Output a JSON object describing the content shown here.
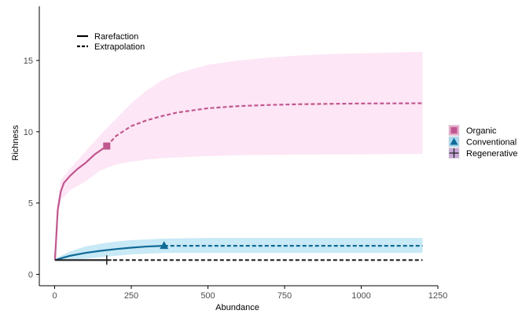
{
  "chart_data": {
    "type": "line",
    "title": "",
    "xlabel": "Abundance",
    "ylabel": "Richness",
    "xlim": [
      -50,
      1250
    ],
    "ylim": [
      -0.8,
      18.8
    ],
    "xticks": [
      "0",
      "250",
      "500",
      "750",
      "1000",
      "1250"
    ],
    "yticks": [
      "0",
      "5",
      "10",
      "15"
    ],
    "grid": false,
    "linetype_legend": {
      "placement": "top-left",
      "items": [
        {
          "label": "Rarefaction",
          "style": "solid"
        },
        {
          "label": "Extrapolation",
          "style": "dashed"
        }
      ]
    },
    "legend": {
      "placement": "right",
      "items": [
        {
          "label": "Organic",
          "color": "#c0578f",
          "fill": "#e7a8cc",
          "shape": "square"
        },
        {
          "label": "Conventional",
          "color": "#0f6a96",
          "fill": "#a8d8ee",
          "shape": "triangle"
        },
        {
          "label": "Regenerative",
          "color": "#222222",
          "fill": "#c9a9d9",
          "shape": "cross"
        }
      ]
    },
    "series": [
      {
        "name": "Organic",
        "color": "#c0578f",
        "band_color": "#fde6f5",
        "observed": {
          "x": 170,
          "y": 9
        },
        "rarefaction": [
          [
            1,
            1
          ],
          [
            5,
            2.5
          ],
          [
            10,
            4.5
          ],
          [
            20,
            5.8
          ],
          [
            30,
            6.4
          ],
          [
            50,
            6.9
          ],
          [
            75,
            7.4
          ],
          [
            100,
            7.8
          ],
          [
            130,
            8.4
          ],
          [
            170,
            9.0
          ]
        ],
        "extrapolation": [
          [
            170,
            9.0
          ],
          [
            200,
            9.7
          ],
          [
            250,
            10.4
          ],
          [
            300,
            10.8
          ],
          [
            350,
            11.1
          ],
          [
            400,
            11.35
          ],
          [
            500,
            11.65
          ],
          [
            600,
            11.8
          ],
          [
            700,
            11.88
          ],
          [
            800,
            11.93
          ],
          [
            900,
            11.96
          ],
          [
            1000,
            11.98
          ],
          [
            1100,
            11.99
          ],
          [
            1200,
            12.0
          ]
        ],
        "band_upper": [
          [
            1,
            1
          ],
          [
            10,
            5
          ],
          [
            20,
            6.6
          ],
          [
            50,
            7.4
          ],
          [
            100,
            8.6
          ],
          [
            150,
            9.8
          ],
          [
            200,
            10.9
          ],
          [
            250,
            12.0
          ],
          [
            300,
            12.9
          ],
          [
            350,
            13.6
          ],
          [
            400,
            14.1
          ],
          [
            500,
            14.7
          ],
          [
            600,
            15.0
          ],
          [
            700,
            15.2
          ],
          [
            800,
            15.35
          ],
          [
            900,
            15.45
          ],
          [
            1000,
            15.5
          ],
          [
            1100,
            15.55
          ],
          [
            1200,
            15.6
          ]
        ],
        "band_lower": [
          [
            1,
            1
          ],
          [
            10,
            4
          ],
          [
            20,
            5.2
          ],
          [
            50,
            5.9
          ],
          [
            100,
            6.5
          ],
          [
            150,
            7.3
          ],
          [
            200,
            7.7
          ],
          [
            250,
            7.9
          ],
          [
            300,
            8.05
          ],
          [
            350,
            8.15
          ],
          [
            400,
            8.2
          ],
          [
            500,
            8.3
          ],
          [
            600,
            8.35
          ],
          [
            700,
            8.38
          ],
          [
            800,
            8.4
          ],
          [
            1000,
            8.42
          ],
          [
            1200,
            8.45
          ]
        ]
      },
      {
        "name": "Conventional",
        "color": "#0f6a96",
        "band_color": "#c8e9f6",
        "observed": {
          "x": 357,
          "y": 2
        },
        "rarefaction": [
          [
            1,
            1
          ],
          [
            25,
            1.15
          ],
          [
            50,
            1.3
          ],
          [
            100,
            1.5
          ],
          [
            150,
            1.65
          ],
          [
            200,
            1.77
          ],
          [
            250,
            1.87
          ],
          [
            300,
            1.95
          ],
          [
            357,
            2.0
          ]
        ],
        "extrapolation": [
          [
            357,
            2.0
          ],
          [
            500,
            2.0
          ],
          [
            750,
            2.0
          ],
          [
            1000,
            2.0
          ],
          [
            1200,
            2.0
          ]
        ],
        "band_upper": [
          [
            1,
            1
          ],
          [
            25,
            1.35
          ],
          [
            50,
            1.6
          ],
          [
            100,
            1.95
          ],
          [
            150,
            2.15
          ],
          [
            200,
            2.3
          ],
          [
            250,
            2.4
          ],
          [
            300,
            2.45
          ],
          [
            357,
            2.5
          ],
          [
            500,
            2.55
          ],
          [
            750,
            2.55
          ],
          [
            1000,
            2.55
          ],
          [
            1200,
            2.55
          ]
        ],
        "band_lower": [
          [
            1,
            1
          ],
          [
            50,
            1.0
          ],
          [
            100,
            1.1
          ],
          [
            150,
            1.2
          ],
          [
            200,
            1.3
          ],
          [
            250,
            1.4
          ],
          [
            300,
            1.45
          ],
          [
            357,
            1.5
          ],
          [
            500,
            1.5
          ],
          [
            750,
            1.5
          ],
          [
            1000,
            1.5
          ],
          [
            1200,
            1.5
          ]
        ]
      },
      {
        "name": "Regenerative",
        "color": "#222222",
        "band_color": "#e6d8f0",
        "observed": {
          "x": 170,
          "y": 1
        },
        "rarefaction": [
          [
            1,
            1
          ],
          [
            170,
            1
          ]
        ],
        "extrapolation": [
          [
            170,
            1
          ],
          [
            500,
            1
          ],
          [
            800,
            1
          ],
          [
            1200,
            1
          ]
        ],
        "band_upper": [],
        "band_lower": []
      }
    ]
  }
}
